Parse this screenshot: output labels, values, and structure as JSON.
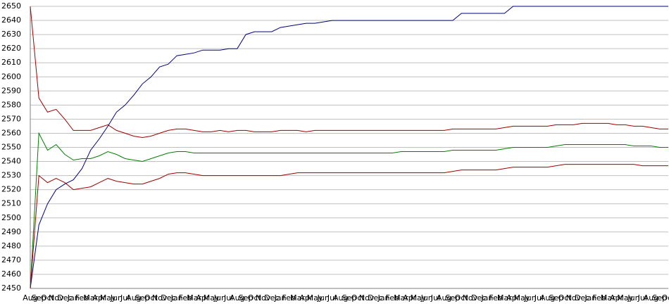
{
  "chart_data": {
    "type": "line",
    "categories": [
      "Aug",
      "Sep",
      "Oct",
      "Nov",
      "Dec",
      "Jan",
      "Feb",
      "Mar",
      "Apr",
      "May",
      "Jun",
      "Jul",
      "Aug",
      "Sep",
      "Oct",
      "Nov",
      "Dec",
      "Jan",
      "Feb",
      "Mar",
      "Apr",
      "May",
      "Jun",
      "Jul",
      "Aug",
      "Sep",
      "Oct",
      "Nov",
      "Dec",
      "Jan",
      "Feb",
      "Mar",
      "Apr",
      "May",
      "Jun",
      "Jul",
      "Aug",
      "Sep",
      "Oct",
      "Nov",
      "Dec",
      "Jan",
      "Feb",
      "Mar",
      "Apr",
      "May",
      "Jun",
      "Jul",
      "Aug",
      "Sep",
      "Oct",
      "Nov",
      "Dec",
      "Jan",
      "Feb",
      "Mar",
      "Apr",
      "May",
      "Jun",
      "Jul",
      "Aug",
      "Sep",
      "Oct",
      "Nov",
      "Dec",
      "Jan",
      "Feb",
      "Mar",
      "Apr",
      "May",
      "Jun",
      "Jul",
      "Aug",
      "Sep",
      "Oct"
    ],
    "series": [
      {
        "color": "#000080",
        "values": [
          2450,
          2495,
          2510,
          2520,
          2524,
          2527,
          2535,
          2548,
          2556,
          2565,
          2575,
          2580,
          2587,
          2595,
          2600,
          2607,
          2609,
          2615,
          2616,
          2617,
          2619,
          2619,
          2619,
          2620,
          2620,
          2630,
          2632,
          2632,
          2632,
          2635,
          2636,
          2637,
          2638,
          2638,
          2639,
          2640,
          2640,
          2640,
          2640,
          2640,
          2640,
          2640,
          2640,
          2640,
          2640,
          2640,
          2640,
          2640,
          2640,
          2640,
          2645,
          2645,
          2645,
          2645,
          2645,
          2645,
          2650,
          2650,
          2650,
          2650,
          2650,
          2650,
          2650,
          2650,
          2650,
          2650,
          2650,
          2650,
          2650,
          2650,
          2650,
          2650,
          2650,
          2650,
          2650
        ]
      },
      {
        "color": "#a00000",
        "values": [
          2650,
          2585,
          2575,
          2577,
          2570,
          2562,
          2562,
          2562,
          2564,
          2566,
          2562,
          2560,
          2558,
          2557,
          2558,
          2560,
          2562,
          2563,
          2563,
          2562,
          2561,
          2561,
          2562,
          2561,
          2562,
          2562,
          2561,
          2561,
          2561,
          2562,
          2562,
          2562,
          2561,
          2562,
          2562,
          2562,
          2562,
          2562,
          2562,
          2562,
          2562,
          2562,
          2562,
          2562,
          2562,
          2562,
          2562,
          2562,
          2562,
          2563,
          2563,
          2563,
          2563,
          2563,
          2563,
          2564,
          2565,
          2565,
          2565,
          2565,
          2565,
          2566,
          2566,
          2566,
          2567,
          2567,
          2567,
          2567,
          2566,
          2566,
          2565,
          2565,
          2564,
          2563,
          2563
        ]
      },
      {
        "color": "#008000",
        "values": [
          2450,
          2560,
          2548,
          2552,
          2545,
          2541,
          2542,
          2542,
          2544,
          2547,
          2545,
          2542,
          2541,
          2540,
          2542,
          2544,
          2546,
          2547,
          2547,
          2546,
          2546,
          2546,
          2546,
          2546,
          2546,
          2546,
          2546,
          2546,
          2546,
          2546,
          2546,
          2546,
          2546,
          2546,
          2546,
          2546,
          2546,
          2546,
          2546,
          2546,
          2546,
          2546,
          2546,
          2547,
          2547,
          2547,
          2547,
          2547,
          2547,
          2548,
          2548,
          2548,
          2548,
          2548,
          2548,
          2549,
          2550,
          2550,
          2550,
          2550,
          2550,
          2551,
          2552,
          2552,
          2552,
          2552,
          2552,
          2552,
          2552,
          2552,
          2551,
          2551,
          2551,
          2550,
          2550
        ]
      },
      {
        "color": "#a00000",
        "values": [
          2450,
          2530,
          2525,
          2528,
          2525,
          2520,
          2521,
          2522,
          2525,
          2528,
          2526,
          2525,
          2524,
          2524,
          2526,
          2528,
          2531,
          2532,
          2532,
          2531,
          2530,
          2530,
          2530,
          2530,
          2530,
          2530,
          2530,
          2530,
          2530,
          2530,
          2531,
          2532,
          2532,
          2532,
          2532,
          2532,
          2532,
          2532,
          2532,
          2532,
          2532,
          2532,
          2532,
          2532,
          2532,
          2532,
          2532,
          2532,
          2532,
          2533,
          2534,
          2534,
          2534,
          2534,
          2534,
          2535,
          2536,
          2536,
          2536,
          2536,
          2536,
          2537,
          2538,
          2538,
          2538,
          2538,
          2538,
          2538,
          2538,
          2538,
          2538,
          2537,
          2537,
          2537,
          2537
        ]
      }
    ],
    "ylim": [
      2450,
      2650
    ],
    "yticks": [
      2450,
      2460,
      2470,
      2480,
      2490,
      2500,
      2510,
      2520,
      2530,
      2540,
      2550,
      2560,
      2570,
      2580,
      2590,
      2600,
      2610,
      2620,
      2630,
      2640,
      2650
    ],
    "grid": true
  }
}
